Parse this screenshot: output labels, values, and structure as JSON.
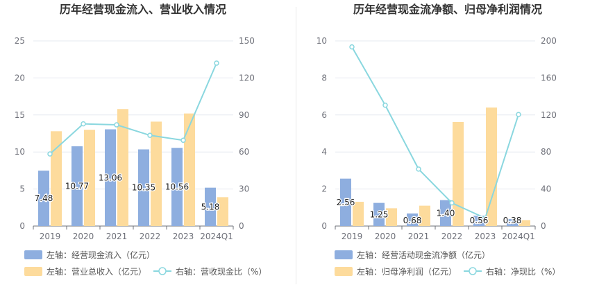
{
  "chart_data": [
    {
      "type": "bar",
      "title": "历年经营现金流入、营业收入情况",
      "categories": [
        "2019",
        "2020",
        "2021",
        "2022",
        "2023",
        "2024Q1"
      ],
      "left_axis": {
        "ticks": [
          "0",
          "5",
          "10",
          "15",
          "20",
          "25"
        ],
        "ylim": [
          0,
          25
        ]
      },
      "right_axis": {
        "ticks": [
          "0",
          "30",
          "60",
          "90",
          "120",
          "150"
        ],
        "ylim": [
          0,
          150
        ]
      },
      "series": [
        {
          "name": "左轴：经营现金流入（亿元）",
          "kind": "bar",
          "axis": "left",
          "color": "#8eaedf",
          "values": [
            7.48,
            10.77,
            13.06,
            10.35,
            10.56,
            5.18
          ],
          "labels": [
            "7.48",
            "10.77",
            "13.06",
            "10.35",
            "10.56",
            "5.18"
          ]
        },
        {
          "name": "左轴：营业总收入（亿元）",
          "kind": "bar",
          "axis": "left",
          "color": "#fddb9c",
          "values": [
            12.8,
            13.0,
            15.8,
            14.1,
            15.2,
            3.9
          ]
        },
        {
          "name": "右轴：营收现金比（%）",
          "kind": "line",
          "axis": "right",
          "color": "#8ad7df",
          "values": [
            58.4,
            82.8,
            82.0,
            73.5,
            69.5,
            132.0
          ]
        }
      ]
    },
    {
      "type": "bar",
      "title": "历年经营现金流净额、归母净利润情况",
      "categories": [
        "2019",
        "2020",
        "2021",
        "2022",
        "2023",
        "2024Q1"
      ],
      "left_axis": {
        "ticks": [
          "0",
          "2",
          "4",
          "6",
          "8",
          "10"
        ],
        "ylim": [
          0,
          10
        ]
      },
      "right_axis": {
        "ticks": [
          "0",
          "40",
          "80",
          "120",
          "160",
          "200"
        ],
        "ylim": [
          0,
          200
        ]
      },
      "series": [
        {
          "name": "左轴：经营活动现金流净额（亿元）",
          "kind": "bar",
          "axis": "left",
          "color": "#8eaedf",
          "values": [
            2.56,
            1.25,
            0.68,
            1.4,
            0.56,
            0.38
          ],
          "labels": [
            "2.56",
            "1.25",
            "0.68",
            "1.40",
            "0.56",
            "0.38"
          ]
        },
        {
          "name": "左轴：归母净利润（亿元）",
          "kind": "bar",
          "axis": "left",
          "color": "#fddb9c",
          "values": [
            1.31,
            0.96,
            1.1,
            5.62,
            6.4,
            0.32
          ]
        },
        {
          "name": "右轴：净现比（%）",
          "kind": "line",
          "axis": "right",
          "color": "#8ad7df",
          "values": [
            193.5,
            130.5,
            61.5,
            25.0,
            8.5,
            120.5
          ]
        }
      ]
    }
  ]
}
